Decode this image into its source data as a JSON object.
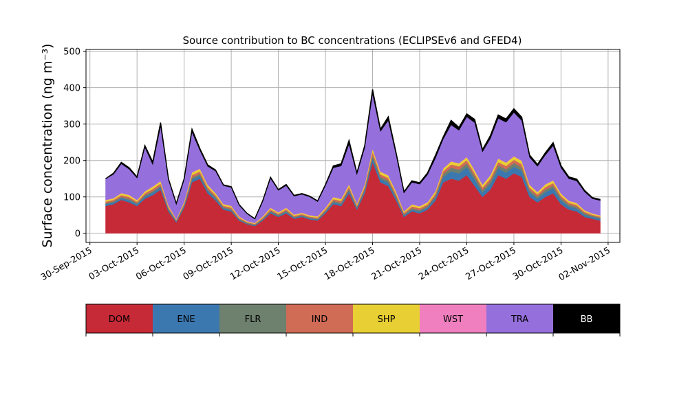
{
  "chart_data": {
    "type": "area",
    "stacked": true,
    "title": "Source contribution to BC concentrations (ECLIPSEv6 and GFED4)",
    "ylabel": "Surface concentration (ng m⁻³)",
    "xlabel": "",
    "ylim": [
      -25,
      505
    ],
    "xlim": [
      "2015-09-29 18:00",
      "2015-11-02 18:00"
    ],
    "grid": true,
    "legend_placement": "below",
    "x_ticks": [
      "30-Sep-2015",
      "03-Oct-2015",
      "06-Oct-2015",
      "09-Oct-2015",
      "12-Oct-2015",
      "15-Oct-2015",
      "18-Oct-2015",
      "21-Oct-2015",
      "24-Oct-2015",
      "27-Oct-2015",
      "30-Oct-2015",
      "02-Nov-2015"
    ],
    "y_ticks": [
      0,
      100,
      200,
      300,
      400,
      500
    ],
    "x": [
      "2015-10-01 00:00",
      "2015-10-01 12:00",
      "2015-10-02 00:00",
      "2015-10-02 12:00",
      "2015-10-03 00:00",
      "2015-10-03 12:00",
      "2015-10-04 00:00",
      "2015-10-04 12:00",
      "2015-10-05 00:00",
      "2015-10-05 12:00",
      "2015-10-06 00:00",
      "2015-10-06 12:00",
      "2015-10-07 00:00",
      "2015-10-07 12:00",
      "2015-10-08 00:00",
      "2015-10-08 12:00",
      "2015-10-09 00:00",
      "2015-10-09 12:00",
      "2015-10-10 00:00",
      "2015-10-10 12:00",
      "2015-10-11 00:00",
      "2015-10-11 12:00",
      "2015-10-12 00:00",
      "2015-10-12 12:00",
      "2015-10-13 00:00",
      "2015-10-13 12:00",
      "2015-10-14 00:00",
      "2015-10-14 12:00",
      "2015-10-15 00:00",
      "2015-10-15 12:00",
      "2015-10-16 00:00",
      "2015-10-16 12:00",
      "2015-10-17 00:00",
      "2015-10-17 12:00",
      "2015-10-18 00:00",
      "2015-10-18 12:00",
      "2015-10-19 00:00",
      "2015-10-19 12:00",
      "2015-10-20 00:00",
      "2015-10-20 12:00",
      "2015-10-21 00:00",
      "2015-10-21 12:00",
      "2015-10-22 00:00",
      "2015-10-22 12:00",
      "2015-10-23 00:00",
      "2015-10-23 12:00",
      "2015-10-24 00:00",
      "2015-10-24 12:00",
      "2015-10-25 00:00",
      "2015-10-25 12:00",
      "2015-10-26 00:00",
      "2015-10-26 12:00",
      "2015-10-27 00:00",
      "2015-10-27 12:00",
      "2015-10-28 00:00",
      "2015-10-28 12:00",
      "2015-10-29 00:00",
      "2015-10-29 12:00",
      "2015-10-30 00:00",
      "2015-10-30 12:00",
      "2015-10-31 00:00",
      "2015-10-31 12:00",
      "2015-11-01 00:00",
      "2015-11-01 12:00"
    ],
    "series": [
      {
        "name": "DOM",
        "color": "#c62a36",
        "values": [
          75,
          80,
          92,
          85,
          75,
          95,
          105,
          120,
          60,
          30,
          70,
          140,
          150,
          110,
          90,
          65,
          60,
          35,
          25,
          20,
          35,
          55,
          45,
          55,
          40,
          45,
          38,
          35,
          55,
          80,
          75,
          110,
          65,
          110,
          195,
          140,
          130,
          90,
          45,
          60,
          55,
          65,
          90,
          140,
          150,
          145,
          160,
          130,
          100,
          120,
          160,
          150,
          165,
          155,
          100,
          85,
          100,
          110,
          80,
          65,
          60,
          45,
          40,
          35
        ]
      },
      {
        "name": "ENE",
        "color": "#3b78b0",
        "values": [
          5,
          5,
          5,
          6,
          5,
          6,
          7,
          7,
          5,
          3,
          5,
          8,
          8,
          7,
          6,
          4,
          4,
          3,
          2,
          2,
          3,
          4,
          3,
          4,
          3,
          3,
          3,
          3,
          4,
          5,
          5,
          7,
          5,
          7,
          12,
          9,
          9,
          7,
          4,
          5,
          5,
          6,
          8,
          15,
          20,
          20,
          22,
          18,
          12,
          15,
          18,
          17,
          18,
          17,
          12,
          10,
          13,
          14,
          11,
          9,
          8,
          6,
          5,
          5
        ]
      },
      {
        "name": "FLR",
        "color": "#6e806e",
        "values": [
          3,
          3,
          3,
          4,
          3,
          4,
          4,
          4,
          3,
          2,
          3,
          5,
          5,
          4,
          4,
          3,
          3,
          2,
          2,
          2,
          2,
          3,
          3,
          3,
          2,
          2,
          2,
          2,
          3,
          4,
          4,
          5,
          3,
          5,
          8,
          6,
          6,
          5,
          3,
          4,
          4,
          4,
          5,
          8,
          10,
          10,
          10,
          9,
          7,
          8,
          9,
          9,
          10,
          9,
          7,
          6,
          7,
          7,
          6,
          5,
          5,
          4,
          3,
          3
        ]
      },
      {
        "name": "IND",
        "color": "#d06b55",
        "values": [
          4,
          4,
          5,
          5,
          4,
          5,
          6,
          6,
          4,
          2,
          4,
          7,
          7,
          6,
          5,
          4,
          4,
          3,
          2,
          2,
          3,
          4,
          3,
          4,
          3,
          3,
          3,
          3,
          4,
          5,
          5,
          6,
          4,
          6,
          9,
          7,
          7,
          6,
          4,
          5,
          5,
          5,
          6,
          8,
          9,
          9,
          9,
          8,
          7,
          8,
          9,
          9,
          9,
          9,
          7,
          6,
          7,
          7,
          6,
          5,
          5,
          4,
          3,
          3
        ]
      },
      {
        "name": "SHP",
        "color": "#e8cf33",
        "values": [
          4,
          4,
          5,
          5,
          4,
          5,
          6,
          6,
          4,
          2,
          4,
          7,
          7,
          6,
          5,
          4,
          4,
          3,
          2,
          2,
          3,
          4,
          3,
          4,
          3,
          3,
          3,
          3,
          4,
          5,
          5,
          6,
          4,
          6,
          8,
          7,
          7,
          6,
          4,
          5,
          5,
          5,
          6,
          7,
          8,
          8,
          8,
          8,
          7,
          8,
          9,
          9,
          9,
          9,
          7,
          6,
          7,
          7,
          6,
          5,
          5,
          4,
          3,
          3
        ]
      },
      {
        "name": "WST",
        "color": "#f07fbf",
        "values": [
          1,
          1,
          1,
          1,
          1,
          1,
          1,
          1,
          1,
          1,
          1,
          1,
          1,
          1,
          1,
          1,
          1,
          1,
          1,
          1,
          1,
          1,
          1,
          1,
          1,
          1,
          1,
          1,
          1,
          1,
          1,
          1,
          1,
          1,
          1,
          1,
          1,
          1,
          1,
          1,
          1,
          1,
          1,
          1,
          1,
          1,
          1,
          1,
          1,
          1,
          1,
          1,
          1,
          1,
          1,
          1,
          1,
          1,
          1,
          1,
          1,
          1,
          1,
          1
        ]
      },
      {
        "name": "TRA",
        "color": "#9570dc",
        "values": [
          58,
          65,
          80,
          70,
          60,
          120,
          60,
          150,
          70,
          40,
          60,
          110,
          50,
          50,
          60,
          50,
          50,
          30,
          20,
          10,
          40,
          80,
          60,
          60,
          50,
          50,
          50,
          40,
          60,
          80,
          90,
          110,
          80,
          100,
          150,
          110,
          150,
          100,
          50,
          60,
          60,
          75,
          90,
          80,
          100,
          90,
          110,
          130,
          90,
          100,
          110,
          110,
          120,
          110,
          75,
          70,
          80,
          95,
          70,
          60,
          60,
          50,
          40,
          40
        ]
      },
      {
        "name": "BB",
        "color": "#000000",
        "values": [
          0,
          3,
          4,
          4,
          3,
          5,
          7,
          10,
          3,
          2,
          3,
          8,
          5,
          4,
          3,
          2,
          2,
          2,
          1,
          1,
          2,
          3,
          2,
          3,
          2,
          2,
          2,
          2,
          3,
          5,
          6,
          10,
          4,
          6,
          12,
          6,
          10,
          6,
          3,
          4,
          4,
          5,
          8,
          6,
          12,
          8,
          8,
          9,
          6,
          8,
          9,
          9,
          10,
          9,
          6,
          5,
          6,
          8,
          6,
          5,
          5,
          4,
          3,
          3
        ]
      }
    ]
  },
  "legend": {
    "items": [
      {
        "label": "DOM",
        "color": "#c62a36",
        "text_color": "#000000"
      },
      {
        "label": "ENE",
        "color": "#3b78b0",
        "text_color": "#000000"
      },
      {
        "label": "FLR",
        "color": "#6e806e",
        "text_color": "#000000"
      },
      {
        "label": "IND",
        "color": "#d06b55",
        "text_color": "#000000"
      },
      {
        "label": "SHP",
        "color": "#e8cf33",
        "text_color": "#000000"
      },
      {
        "label": "WST",
        "color": "#f07fbf",
        "text_color": "#000000"
      },
      {
        "label": "TRA",
        "color": "#9570dc",
        "text_color": "#000000"
      },
      {
        "label": "BB",
        "color": "#000000",
        "text_color": "#ffffff"
      }
    ]
  }
}
